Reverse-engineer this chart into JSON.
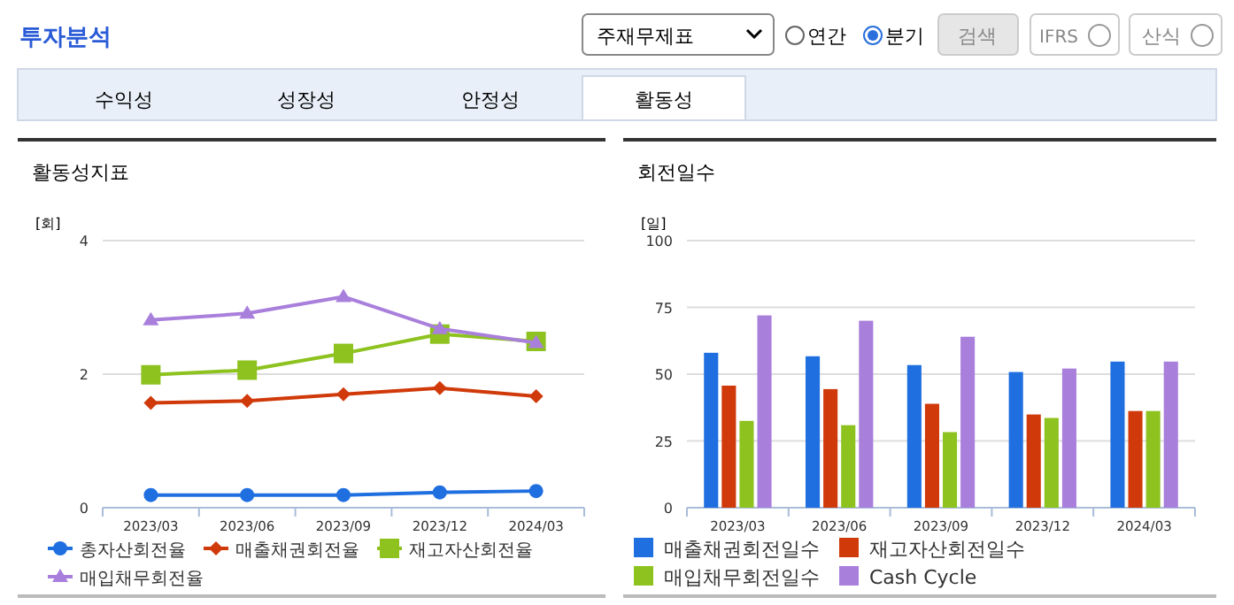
{
  "chart_data": [
    {
      "type": "other",
      "title": "투자분석",
      "annotations": [
        "주재무제표",
        "연간",
        "분기",
        "검색",
        "IFRS",
        "산식",
        "수익성",
        "성장성",
        "안정성",
        "활동성"
      ]
    },
    {
      "type": "line",
      "title": "활동성지표",
      "ylabel": "[회]",
      "categories": [
        "2023/03",
        "2023/06",
        "2023/09",
        "2023/12",
        "2024/03"
      ],
      "ylim": [
        0,
        4
      ],
      "yticks": [
        0,
        2,
        4
      ],
      "grid": "y",
      "legend": "bottom",
      "series": [
        {
          "name": "총자산회전율",
          "color": "#1f6fe0",
          "marker": "circle",
          "values": [
            0.19,
            0.19,
            0.19,
            0.23,
            0.25
          ]
        },
        {
          "name": "매출채권회전율",
          "color": "#d03a0a",
          "marker": "diamond",
          "values": [
            1.57,
            1.6,
            1.7,
            1.79,
            1.67
          ]
        },
        {
          "name": "재고자산회전율",
          "color": "#8dc21f",
          "marker": "square",
          "values": [
            1.99,
            2.06,
            2.31,
            2.6,
            2.49
          ]
        },
        {
          "name": "매입채무회전율",
          "color": "#a97fdc",
          "marker": "triangle",
          "values": [
            2.81,
            2.91,
            3.16,
            2.68,
            2.47
          ]
        }
      ]
    },
    {
      "type": "bar",
      "title": "회전일수",
      "ylabel": "[일]",
      "categories": [
        "2023/03",
        "2023/06",
        "2023/09",
        "2023/12",
        "2024/03"
      ],
      "ylim": [
        0,
        100
      ],
      "yticks": [
        0,
        25,
        50,
        75,
        100
      ],
      "grid": "y",
      "legend": "bottom",
      "series": [
        {
          "name": "매출채권회전일수",
          "color": "#1f6fe0",
          "values": [
            58,
            56.7,
            53.4,
            50.8,
            54.7
          ]
        },
        {
          "name": "재고자산회전일수",
          "color": "#d03a0a",
          "values": [
            45.7,
            44.4,
            38.9,
            34.9,
            36.2
          ]
        },
        {
          "name": "매입채무회전일수",
          "color": "#8dc21f",
          "values": [
            32.5,
            30.9,
            28.3,
            33.6,
            36.2
          ]
        },
        {
          "name": "Cash Cycle",
          "color": "#a97fdc",
          "values": [
            72,
            70,
            64,
            52.1,
            54.7
          ]
        }
      ]
    }
  ]
}
